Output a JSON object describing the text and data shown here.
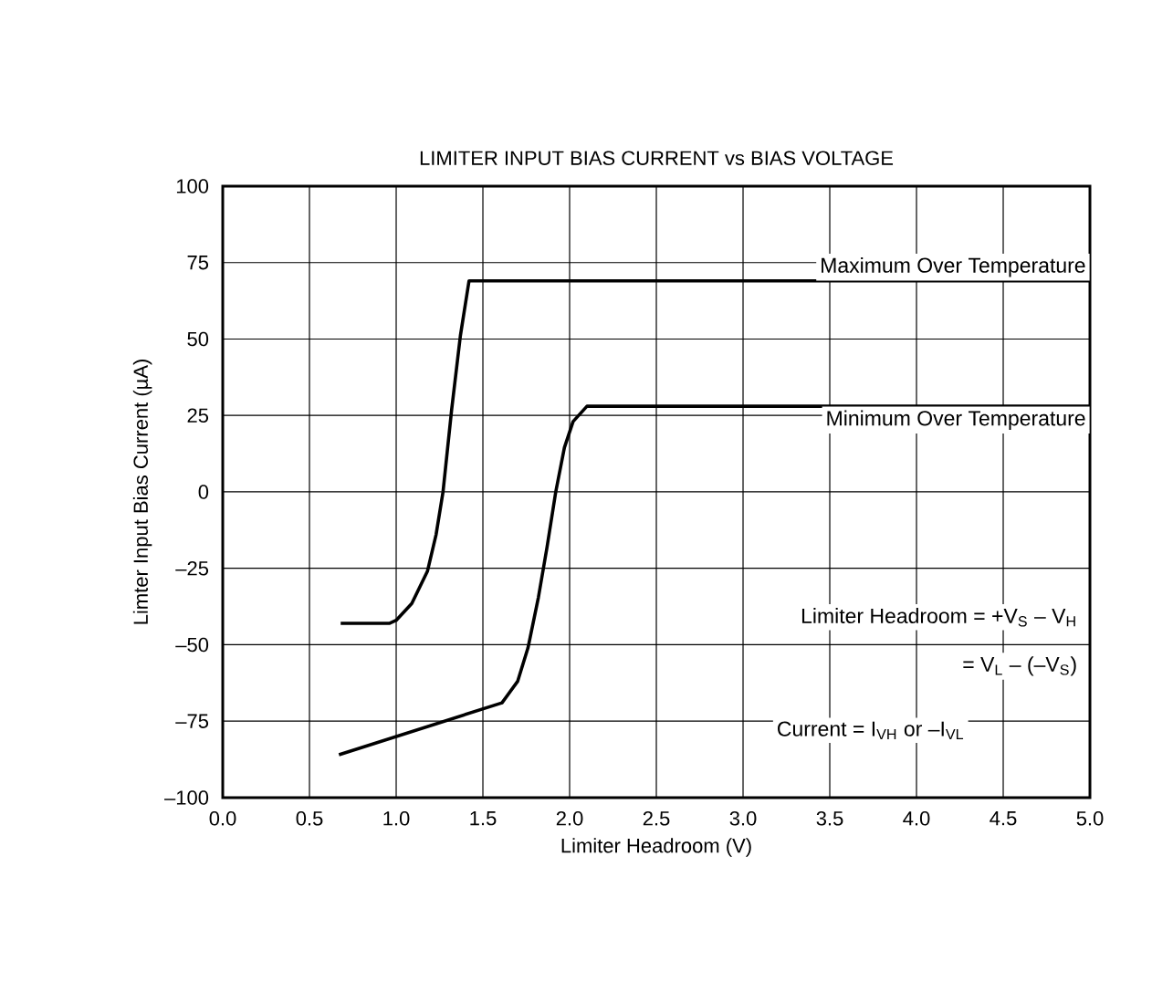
{
  "chart_data": {
    "type": "line",
    "title": "LIMITER INPUT BIAS CURRENT vs BIAS VOLTAGE",
    "xlabel": "Limiter Headroom (V)",
    "ylabel": "Limter Input Bias Current (µA)",
    "series": [
      {
        "name": "Maximum Over Temperature",
        "color": "#000000",
        "x": [
          0.68,
          0.96,
          1.0,
          1.09,
          1.18,
          1.23,
          1.27,
          1.32,
          1.37,
          1.42,
          5.0
        ],
        "values": [
          -43,
          -43,
          -42,
          -36.5,
          -26,
          -14,
          0,
          27,
          51,
          69,
          69
        ]
      },
      {
        "name": "Minimum Over Temperature",
        "color": "#000000",
        "x": [
          0.67,
          1.61,
          1.7,
          1.76,
          1.82,
          1.87,
          1.92,
          1.97,
          2.02,
          2.1,
          5.0
        ],
        "values": [
          -86,
          -69,
          -62,
          -51,
          -34.5,
          -18,
          0,
          14.5,
          23,
          28,
          28
        ]
      }
    ],
    "annotations": [
      "Limiter Headroom = +V$_{S}$ – V$_{H}$",
      "= V$_{L}$ – (–V$_{S}$)",
      "Current = I$_{VH}$ or  –I$_{VL}$"
    ],
    "xlim": [
      0,
      5
    ],
    "ylim": [
      -100,
      100
    ],
    "xticks": [
      {
        "value": 0,
        "label": "0.0"
      },
      {
        "value": 0.5,
        "label": "0.5"
      },
      {
        "value": 1,
        "label": "1.0"
      },
      {
        "value": 1.5,
        "label": "1.5"
      },
      {
        "value": 2,
        "label": "2.0"
      },
      {
        "value": 2.5,
        "label": "2.5"
      },
      {
        "value": 3,
        "label": "3.0"
      },
      {
        "value": 3.5,
        "label": "3.5"
      },
      {
        "value": 4,
        "label": "4.0"
      },
      {
        "value": 4.5,
        "label": "4.5"
      },
      {
        "value": 5,
        "label": "5.0"
      }
    ],
    "yticks": [
      {
        "value": -100,
        "label": "–100"
      },
      {
        "value": -75,
        "label": "–75"
      },
      {
        "value": -50,
        "label": "–50"
      },
      {
        "value": -25,
        "label": "–25"
      },
      0,
      25,
      50,
      75,
      100
    ],
    "grid": true,
    "marker": "none",
    "line_style": "solid"
  }
}
